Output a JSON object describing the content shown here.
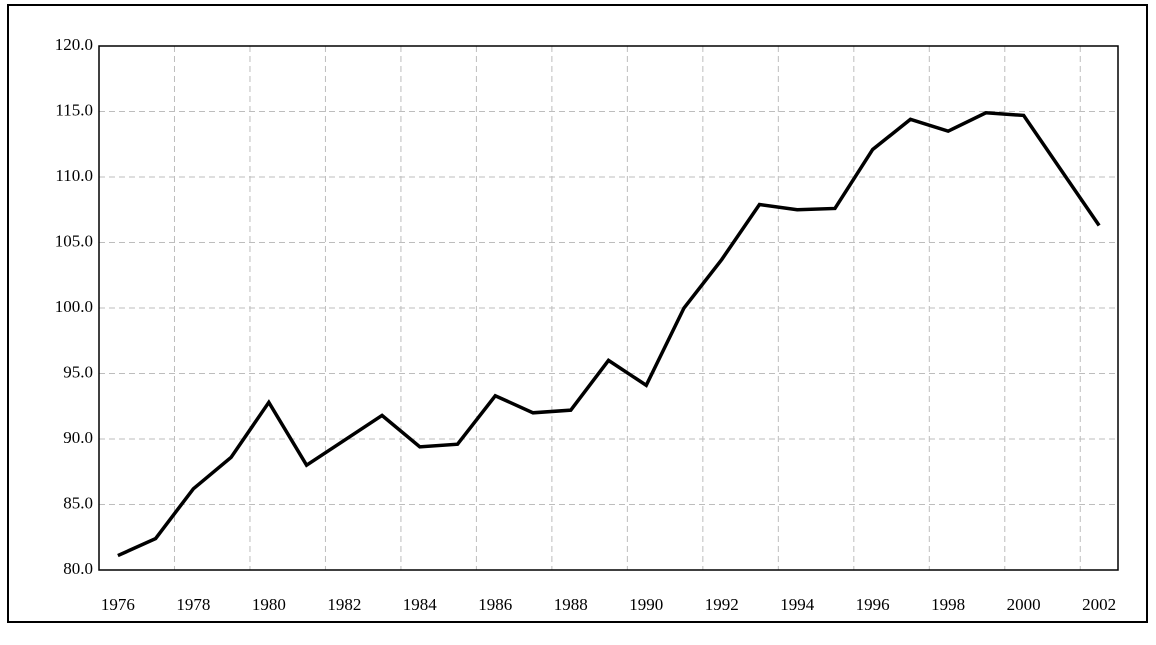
{
  "chart_data": {
    "type": "line",
    "categories": [
      "1976",
      null,
      "1978",
      null,
      "1980",
      null,
      "1982",
      null,
      "1984",
      null,
      "1986",
      null,
      "1988",
      null,
      "1990",
      null,
      "1992",
      null,
      "1994",
      null,
      "1996",
      null,
      "1998",
      null,
      "2000",
      null,
      "2002"
    ],
    "values": [
      81.1,
      82.4,
      86.2,
      88.6,
      92.8,
      88.0,
      89.9,
      91.8,
      89.4,
      89.6,
      93.3,
      92.0,
      92.2,
      96.0,
      94.1,
      100.0,
      103.7,
      107.9,
      107.5,
      107.6,
      112.1,
      114.4,
      113.5,
      114.9,
      114.7,
      110.5,
      106.3
    ],
    "color": "#000000",
    "ylim": [
      80,
      120
    ],
    "yticks": [
      {
        "value": 80,
        "label": "80.0"
      },
      {
        "value": 85,
        "label": "85.0"
      },
      {
        "value": 90,
        "label": "90.0"
      },
      {
        "value": 95,
        "label": "95.0"
      },
      {
        "value": 100,
        "label": "100.0"
      },
      {
        "value": 105,
        "label": "105.0"
      },
      {
        "value": 110,
        "label": "110.0"
      },
      {
        "value": 115,
        "label": "115.0"
      },
      {
        "value": 120,
        "label": "120.0"
      }
    ],
    "grid": true
  }
}
